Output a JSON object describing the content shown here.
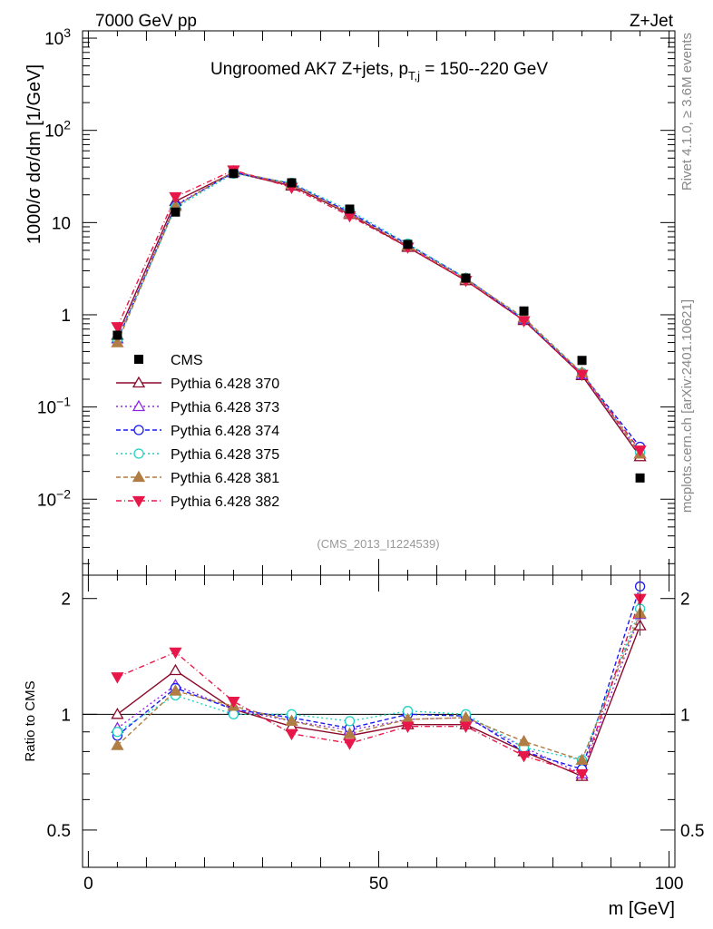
{
  "header": {
    "left": "7000 GeV pp",
    "right": "Z+Jet",
    "side_top": "Rivet 4.1.0, ≥ 3.6M events",
    "side_bottom": "mcplots.cern.ch [arXiv:2401.10621]",
    "watermark": "(CMS_2013_I1224539)"
  },
  "chart_data": {
    "type": "line",
    "title": "Ungroomed AK7 Z+jets, p_T,j = 150--220 GeV",
    "title_parts": {
      "pre": "Ungroomed AK7 Z+jets, p",
      "sub": "T,j",
      "post": " = 150--220 GeV"
    },
    "xlabel": "m [GeV]",
    "ylabel": "1000/σ  dσ/dm [1/GeV]",
    "ratio_ylabel": "Ratio to CMS",
    "xlim": [
      -1,
      101
    ],
    "ylim": [
      0.0015,
      1200
    ],
    "ratio_ylim": [
      0.4,
      2.3
    ],
    "yscale": "log",
    "ratio_scale": "log",
    "x_ticks": [
      {
        "v": 0,
        "label": "0"
      },
      {
        "v": 50,
        "label": "50"
      },
      {
        "v": 100,
        "label": "100"
      }
    ],
    "y_ticks": [
      {
        "v": 0.01,
        "base": "10",
        "exp": "−2"
      },
      {
        "v": 0.1,
        "base": "10",
        "exp": "−1"
      },
      {
        "v": 1,
        "base": "1",
        "exp": ""
      },
      {
        "v": 10,
        "base": "10",
        "exp": ""
      },
      {
        "v": 100,
        "base": "10",
        "exp": "2"
      },
      {
        "v": 1000,
        "base": "10",
        "exp": "3"
      }
    ],
    "ratio_ticks": [
      {
        "v": 0.5,
        "label": "0.5"
      },
      {
        "v": 1,
        "label": "1"
      },
      {
        "v": 2,
        "label": "2"
      }
    ],
    "x": [
      5,
      15,
      25,
      35,
      45,
      55,
      65,
      75,
      85,
      95
    ],
    "data": {
      "name": "CMS",
      "values": [
        0.6,
        13,
        34,
        27,
        14,
        5.8,
        2.5,
        1.1,
        0.32,
        0.017
      ]
    },
    "series": [
      {
        "name": "Pythia 6.428 370",
        "color": "#8b0a2a",
        "dash": "",
        "marker": "tri-up-open",
        "values": [
          0.6,
          17,
          35,
          25,
          12.3,
          5.4,
          2.35,
          0.87,
          0.22,
          0.029
        ],
        "ratio": [
          1.0,
          1.3,
          1.03,
          0.93,
          0.88,
          0.94,
          0.94,
          0.8,
          0.69,
          1.7
        ]
      },
      {
        "name": "Pythia 6.428 373",
        "color": "#8a2be2",
        "dash": "2,3",
        "marker": "tri-up-open",
        "values": [
          0.55,
          15.5,
          35,
          26,
          12.8,
          5.6,
          2.45,
          0.9,
          0.225,
          0.031
        ],
        "ratio": [
          0.92,
          1.19,
          1.03,
          0.96,
          0.91,
          0.97,
          0.98,
          0.82,
          0.7,
          1.82
        ]
      },
      {
        "name": "Pythia 6.428 374",
        "color": "#1a1aee",
        "dash": "5,3",
        "marker": "circle-open",
        "values": [
          0.53,
          15.2,
          35,
          26.5,
          12.9,
          5.8,
          2.5,
          0.88,
          0.23,
          0.037
        ],
        "ratio": [
          0.88,
          1.17,
          1.03,
          0.98,
          0.92,
          1.0,
          0.99,
          0.8,
          0.72,
          2.15
        ]
      },
      {
        "name": "Pythia 6.428 375",
        "color": "#20d3c0",
        "dash": "2,3",
        "marker": "circle-open",
        "values": [
          0.54,
          14.5,
          34,
          27,
          13.5,
          5.9,
          2.5,
          0.9,
          0.235,
          0.032
        ],
        "ratio": [
          0.9,
          1.12,
          1.0,
          1.0,
          0.96,
          1.02,
          1.0,
          0.82,
          0.76,
          1.88
        ]
      },
      {
        "name": "Pythia 6.428 381",
        "color": "#b07d44",
        "dash": "5,3",
        "marker": "tri-up-fill",
        "values": [
          0.5,
          15,
          36,
          26,
          12.5,
          5.6,
          2.45,
          0.93,
          0.235,
          0.031
        ],
        "ratio": [
          0.83,
          1.15,
          1.05,
          0.96,
          0.89,
          0.97,
          0.98,
          0.85,
          0.76,
          1.83
        ]
      },
      {
        "name": "Pythia 6.428 382",
        "color": "#e8174a",
        "dash": "6,3,1,3",
        "marker": "tri-down-fill",
        "values": [
          0.74,
          19,
          37,
          24,
          11.8,
          5.4,
          2.35,
          0.86,
          0.225,
          0.034
        ],
        "ratio": [
          1.25,
          1.45,
          1.08,
          0.89,
          0.84,
          0.93,
          0.93,
          0.78,
          0.7,
          2.0
        ]
      }
    ]
  }
}
